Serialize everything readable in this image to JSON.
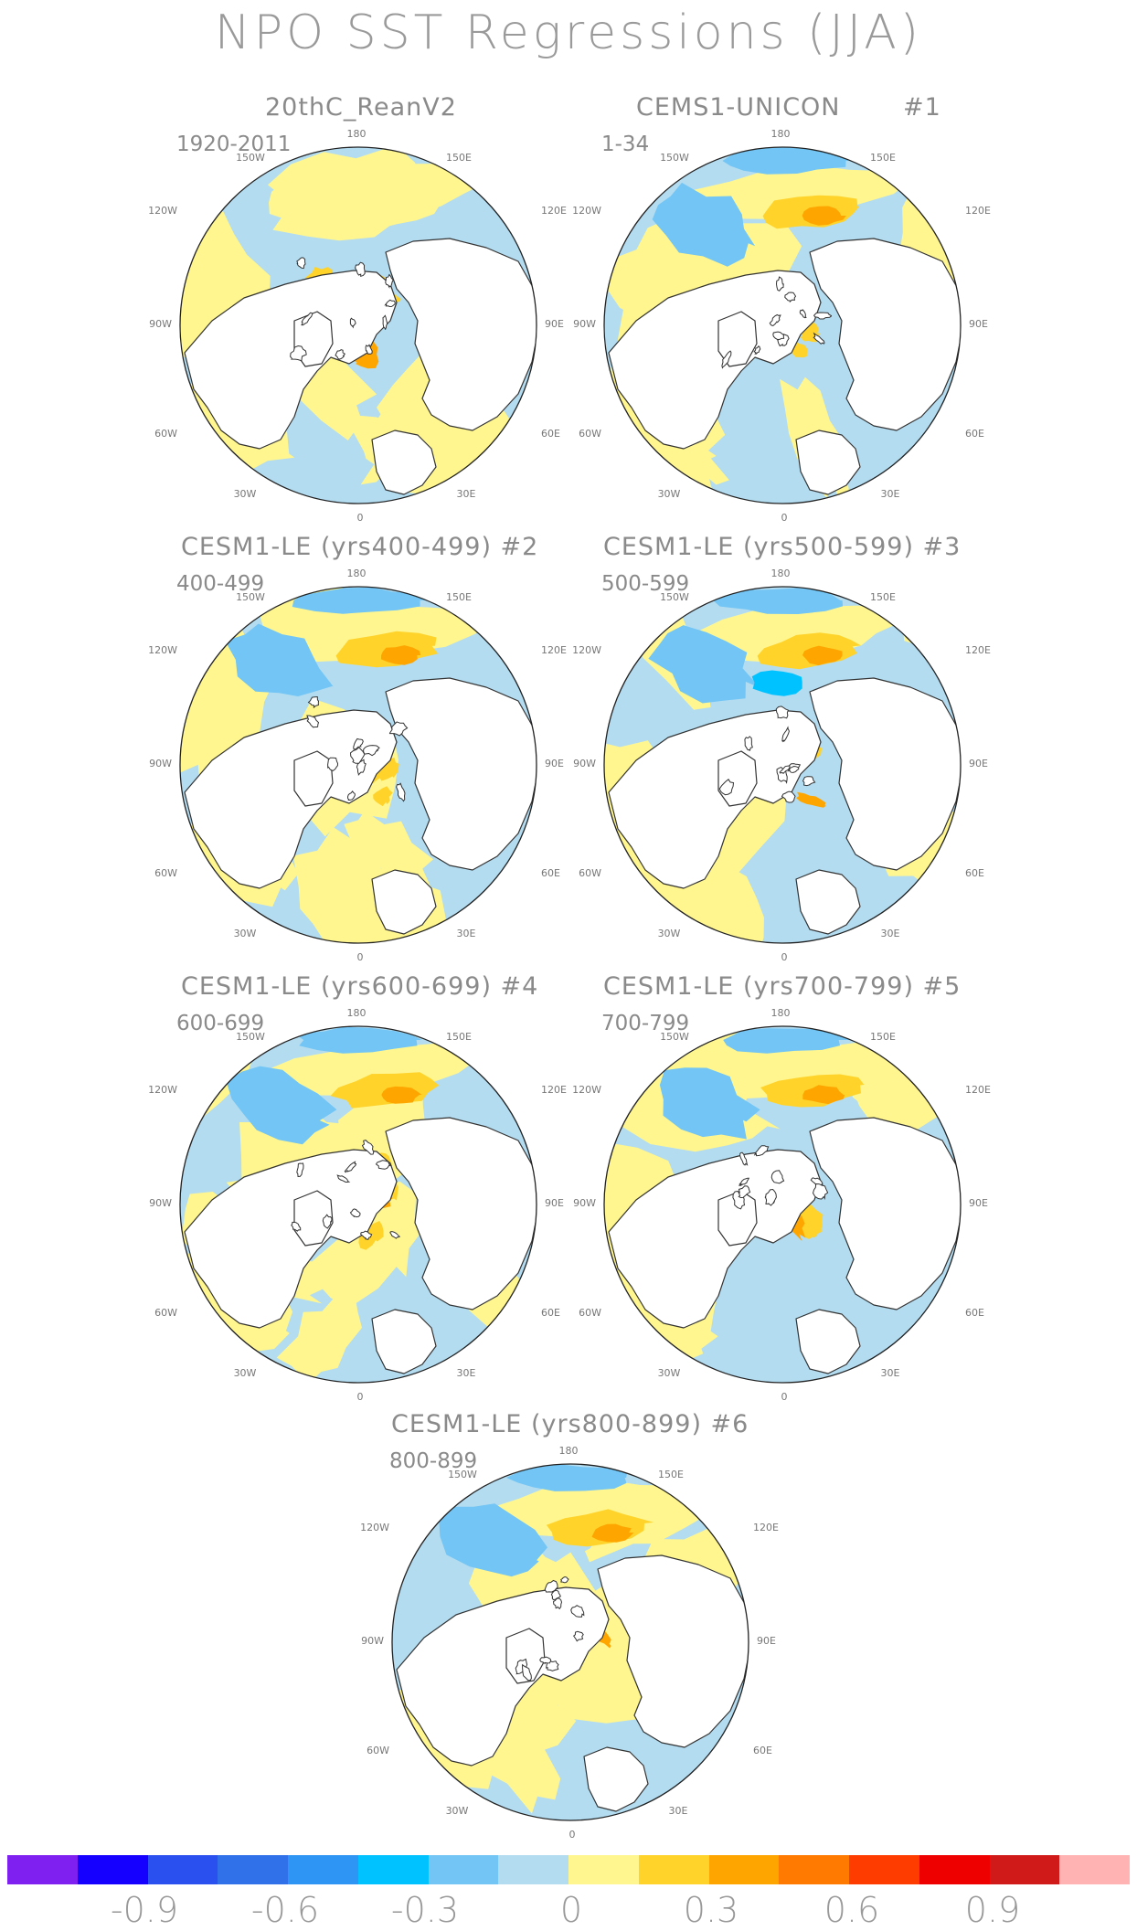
{
  "title": "NPO SST Regressions (JJA)",
  "panels": [
    {
      "title": "20thC_ReanV2",
      "subtitle": "1920-2011"
    },
    {
      "title": "CEMS1-UNICON",
      "number": "#1",
      "subtitle": "1-34"
    },
    {
      "title": "CESM1-LE (yrs400-499) #2",
      "subtitle": "400-499"
    },
    {
      "title": "CESM1-LE (yrs500-599) #3",
      "subtitle": "500-599"
    },
    {
      "title": "CESM1-LE (yrs600-699) #4",
      "subtitle": "600-699"
    },
    {
      "title": "CESM1-LE (yrs700-799) #5",
      "subtitle": "700-799"
    },
    {
      "title": "CESM1-LE (yrs800-899) #6",
      "subtitle": "800-899"
    }
  ],
  "longitude_labels": {
    "top": "180",
    "upper_left": "150W",
    "upper_right": "150E",
    "left_upper": "120W",
    "right_upper": "120E",
    "left": "90W",
    "right": "90E",
    "left_lower": "60W",
    "right_lower": "60E",
    "lower_left": "30W",
    "lower_right": "30E",
    "bottom": "0"
  },
  "colorbar": {
    "colors": [
      "#7f20f0",
      "#1500ff",
      "#2a50f0",
      "#3070e8",
      "#2f95f5",
      "#00c2ff",
      "#72c5f4",
      "#b3dcf1",
      "#fff68f",
      "#ffd32a",
      "#ffa500",
      "#ff7a00",
      "#ff3c00",
      "#ee0000",
      "#d01919",
      "#ffb3b3"
    ],
    "labels": [
      "-0.9",
      "-0.6",
      "-0.3",
      "0",
      "0.3",
      "0.6",
      "0.9"
    ]
  },
  "fill_colors": {
    "ocean_neg": "#b3dcf1",
    "ocean_pos": "#fff68f",
    "neg_mid": "#72c5f4",
    "neg_strong": "#00c2ff",
    "pos_mid": "#ffd32a",
    "pos_strong": "#ffa500",
    "land": "#ffffff"
  }
}
